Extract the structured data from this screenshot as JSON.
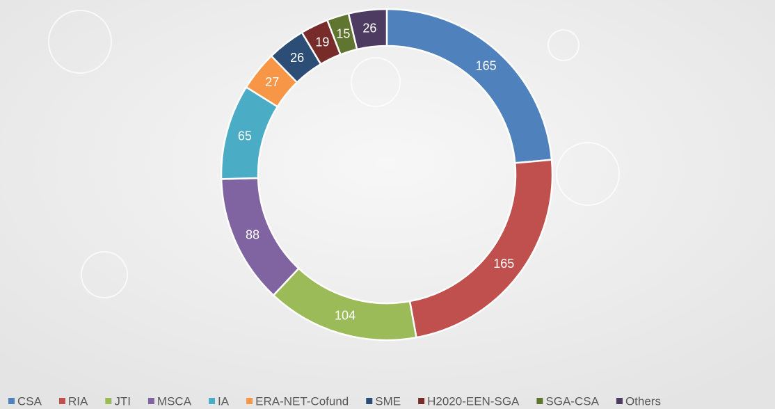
{
  "chart_data": {
    "type": "donut",
    "categories": [
      "CSA",
      "RIA",
      "JTI",
      "MSCA",
      "IA",
      "ERA-NET-Cofund",
      "SME",
      "H2020-EEN-SGA",
      "SGA-CSA",
      "Others"
    ],
    "values": [
      165,
      165,
      104,
      88,
      65,
      27,
      26,
      19,
      15,
      26
    ],
    "colors": [
      "#4f81bd",
      "#c0504d",
      "#9bbb59",
      "#8064a2",
      "#4bacc6",
      "#f79646",
      "#2c4d75",
      "#772c2a",
      "#5f7530",
      "#4d3b62"
    ],
    "legend": "bottom"
  }
}
